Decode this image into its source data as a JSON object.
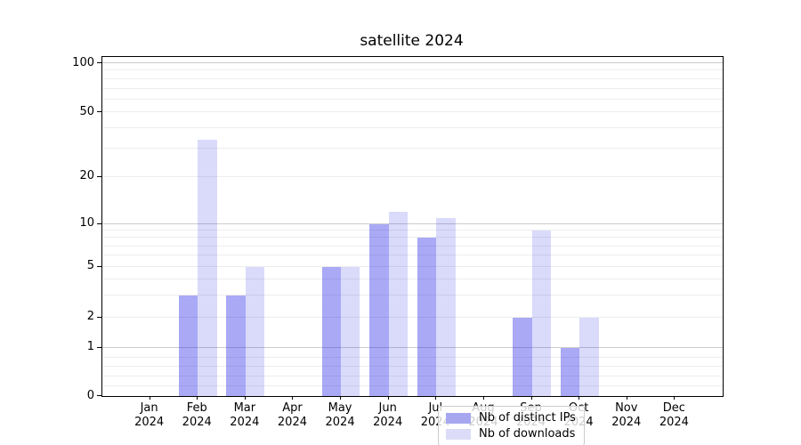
{
  "title": "satellite 2024",
  "legend": {
    "items": [
      {
        "label": "Nb of distinct IPs",
        "swatch_color": "#a7a7f0"
      },
      {
        "label": "Nb of downloads",
        "swatch_color": "#dcdcf8"
      }
    ]
  },
  "axis": {
    "y_tick_labels": [
      "0",
      "1",
      "2",
      "5",
      "10",
      "20",
      "50",
      "100"
    ],
    "y_tick_values": [
      0,
      1,
      2,
      5,
      10,
      20,
      50,
      100
    ],
    "months": [
      {
        "month": "Jan",
        "year": "2024"
      },
      {
        "month": "Feb",
        "year": "2024"
      },
      {
        "month": "Mar",
        "year": "2024"
      },
      {
        "month": "Apr",
        "year": "2024"
      },
      {
        "month": "May",
        "year": "2024"
      },
      {
        "month": "Jun",
        "year": "2024"
      },
      {
        "month": "Jul",
        "year": "2024"
      },
      {
        "month": "Aug",
        "year": "2024"
      },
      {
        "month": "Sep",
        "year": "2024"
      },
      {
        "month": "Oct",
        "year": "2024"
      },
      {
        "month": "Nov",
        "year": "2024"
      },
      {
        "month": "Dec",
        "year": "2024"
      }
    ]
  },
  "colors": {
    "bar_base": "#0a0ae6",
    "ips_alpha": 0.35,
    "downloads_alpha": 0.15,
    "ips_solid": "#a7a7f0",
    "downloads_solid": "#dcdcf8",
    "grid_minor": "#ededed",
    "grid_major": "#cccccc"
  },
  "chart_data": {
    "type": "bar",
    "title": "satellite 2024",
    "categories": [
      "Jan 2024",
      "Feb 2024",
      "Mar 2024",
      "Apr 2024",
      "May 2024",
      "Jun 2024",
      "Jul 2024",
      "Aug 2024",
      "Sep 2024",
      "Oct 2024",
      "Nov 2024",
      "Dec 2024"
    ],
    "series": [
      {
        "name": "Nb of distinct IPs",
        "values": [
          0,
          3,
          3,
          0,
          5,
          10,
          8,
          0,
          2,
          1,
          0,
          0
        ]
      },
      {
        "name": "Nb of downloads",
        "values": [
          0,
          34,
          5,
          0,
          5,
          12,
          11,
          0,
          9,
          2,
          0,
          0
        ]
      }
    ],
    "xlabel": "",
    "ylabel": "",
    "yscale": "symlog",
    "ylim": [
      0,
      100
    ],
    "y_ticks": [
      0,
      1,
      2,
      5,
      10,
      20,
      50,
      100
    ],
    "y_minor_gridlines": [
      0.2,
      0.4,
      0.6,
      0.8,
      2,
      3,
      4,
      5,
      6,
      7,
      8,
      9,
      20,
      30,
      40,
      50,
      60,
      70,
      80,
      90
    ],
    "y_major_gridlines": [
      1,
      10,
      100
    ],
    "grid": "horizontal",
    "legend_position": "lower center"
  }
}
